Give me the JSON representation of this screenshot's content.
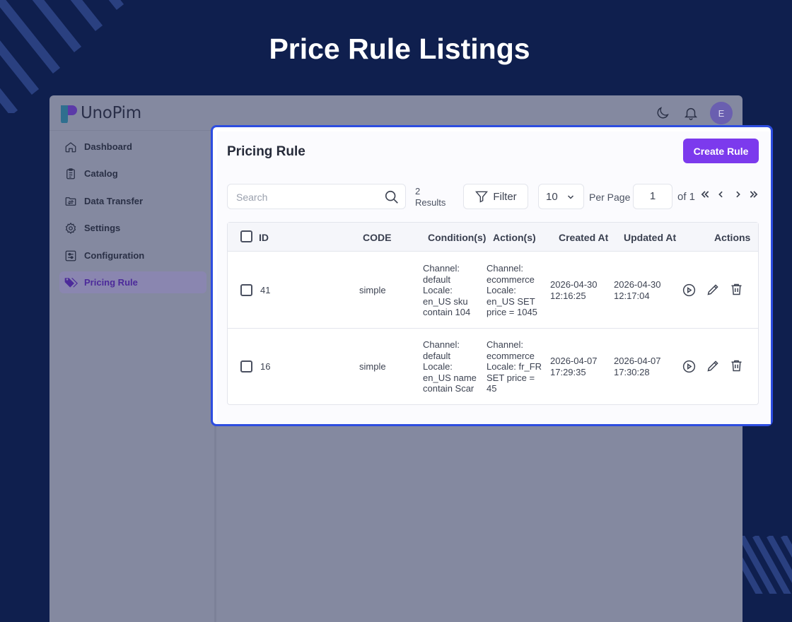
{
  "hero": {
    "title": "Price Rule Listings"
  },
  "app": {
    "logo_text": "UnoPim",
    "avatar_initial": "E",
    "sidebar": {
      "items": [
        {
          "label": "Dashboard",
          "icon": "home-icon"
        },
        {
          "label": "Catalog",
          "icon": "clipboard-icon"
        },
        {
          "label": "Data Transfer",
          "icon": "folder-transfer-icon"
        },
        {
          "label": "Settings",
          "icon": "gear-icon"
        },
        {
          "label": "Configuration",
          "icon": "sliders-icon"
        },
        {
          "label": "Pricing Rule",
          "icon": "tags-icon",
          "active": true
        }
      ]
    }
  },
  "page": {
    "title": "Pricing Rule",
    "create_button": "Create Rule",
    "search_placeholder": "Search",
    "results_count": "2",
    "results_label": "Results",
    "filter_label": "Filter",
    "per_page_value": "10",
    "per_page_label": "Per Page",
    "current_page": "1",
    "page_of": "of 1"
  },
  "table": {
    "headers": {
      "id": "ID",
      "code": "CODE",
      "conditions": "Condition(s)",
      "actions_col": "Action(s)",
      "created_at": "Created At",
      "updated_at": "Updated At",
      "actions": "Actions"
    },
    "rows": [
      {
        "id": "41",
        "code": "simple",
        "conditions": [
          "Channel:",
          "default",
          "Locale:",
          "en_US sku",
          "contain 104"
        ],
        "actions": [
          "Channel:",
          "ecommerce",
          "Locale:",
          "en_US SET",
          "price = 1045"
        ],
        "created_date": "2026-04-30",
        "created_time": "12:16:25",
        "updated_date": "2026-04-30",
        "updated_time": "12:17:04"
      },
      {
        "id": "16",
        "code": "simple",
        "conditions": [
          "Channel:",
          "default",
          "Locale:",
          "en_US name",
          "contain Scar"
        ],
        "actions": [
          "Channel:",
          "ecommerce",
          "Locale: fr_FR",
          "SET price =",
          "45"
        ],
        "created_date": "2026-04-07",
        "created_time": "17:29:35",
        "updated_date": "2026-04-07",
        "updated_time": "17:30:28"
      }
    ]
  },
  "colors": {
    "background": "#0f1f4e",
    "accent": "#7c3aed",
    "highlight_border": "#2d4de0"
  }
}
